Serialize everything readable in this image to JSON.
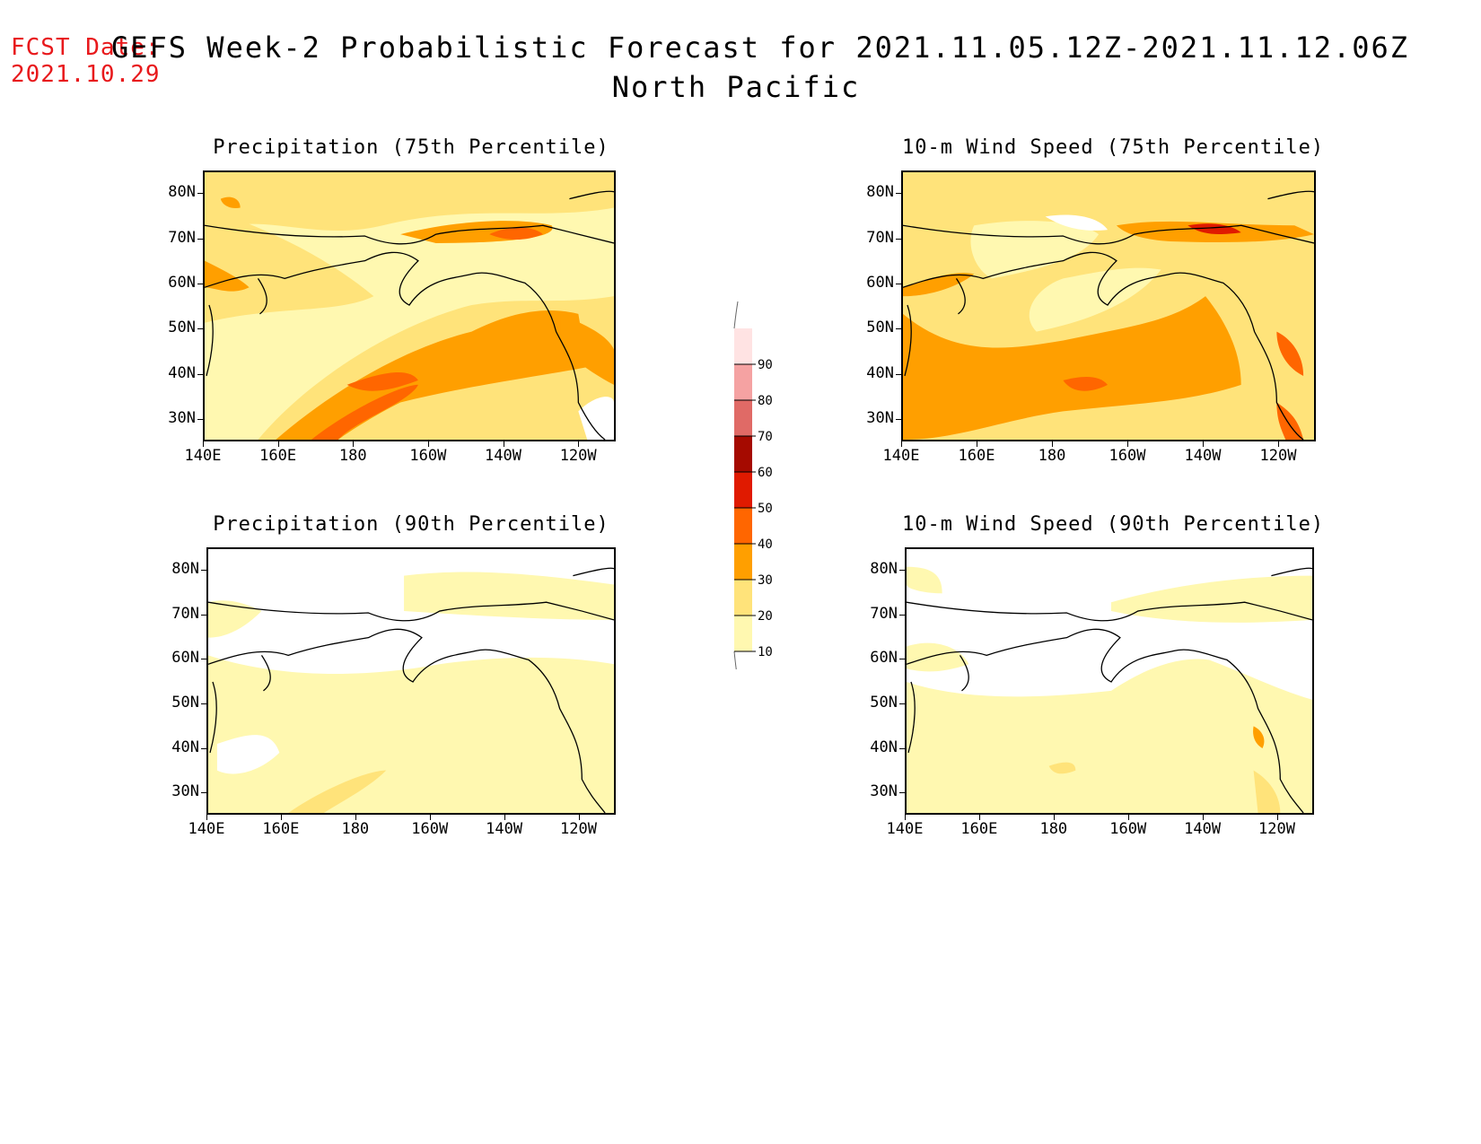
{
  "header": {
    "fcst_label": "FCST Date:",
    "fcst_date": "2021.10.29",
    "title": "GEFS Week-2 Probabilistic Forecast for 2021.11.05.12Z-2021.11.12.06Z",
    "region": "North Pacific"
  },
  "panels": [
    {
      "title": "Precipitation (75th Percentile)"
    },
    {
      "title": "10-m Wind Speed (75th Percentile)"
    },
    {
      "title": "Precipitation (90th Percentile)"
    },
    {
      "title": "10-m Wind Speed (90th Percentile)"
    }
  ],
  "axes": {
    "lat_labels": [
      "80N",
      "70N",
      "60N",
      "50N",
      "40N",
      "30N"
    ],
    "lon_labels": [
      "140E",
      "160E",
      "180",
      "160W",
      "140W",
      "120W"
    ]
  },
  "colorbar": {
    "levels": [
      "10",
      "20",
      "30",
      "40",
      "50",
      "60",
      "70",
      "80",
      "90"
    ],
    "colors": [
      "#fff8b0",
      "#ffe37a",
      "#ff9f00",
      "#ff6600",
      "#e01a00",
      "#a50a00",
      "#e06a66",
      "#f5a2a2",
      "#ffe3e3"
    ]
  }
}
